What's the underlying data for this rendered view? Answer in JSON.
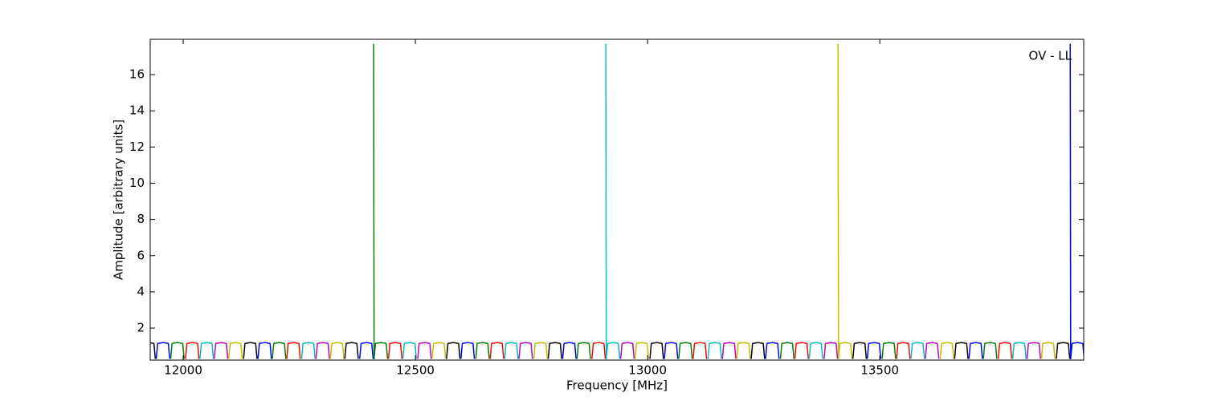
{
  "chart_data": {
    "type": "line",
    "xlabel": "Frequency [MHz]",
    "ylabel": "Amplitude [arbitrary units]",
    "annotation": "OV - LL",
    "xlim": [
      11929,
      13939
    ],
    "ylim": [
      0.23,
      17.95
    ],
    "xticks": [
      12000,
      12500,
      13000,
      13500
    ],
    "yticks": [
      2,
      4,
      6,
      8,
      10,
      12,
      14,
      16
    ],
    "series": [
      {
        "color": "#0000ff",
        "x": [
          11942,
          11945,
          11957,
          11968,
          11971,
          null,
          12161,
          12164,
          12176,
          12187,
          12190,
          null,
          12380,
          12383,
          12395,
          12406,
          12409,
          null,
          12598,
          12601,
          12613,
          12624,
          12627,
          null,
          12817,
          12820,
          12832,
          12843,
          12846,
          null,
          13036,
          13039,
          13051,
          13062,
          13065,
          null,
          13254,
          13257,
          13269,
          13280,
          13283,
          null,
          13473,
          13476,
          13488,
          13499,
          13502,
          null,
          13692,
          13695,
          13707,
          13718,
          13721,
          null,
          13910,
          13911,
          13914,
          13926,
          13937,
          13940
        ],
        "values": [
          0.3,
          1.15,
          1.2,
          1.15,
          0.3,
          null,
          0.3,
          1.15,
          1.2,
          1.15,
          0.3,
          null,
          0.3,
          1.15,
          1.2,
          1.15,
          0.3,
          null,
          0.3,
          1.15,
          1.2,
          1.15,
          0.3,
          null,
          0.3,
          1.15,
          1.2,
          1.15,
          0.3,
          null,
          0.3,
          1.15,
          1.2,
          1.15,
          0.3,
          null,
          0.3,
          1.15,
          1.2,
          1.15,
          0.3,
          null,
          0.3,
          1.15,
          1.2,
          1.15,
          0.3,
          null,
          0.3,
          1.15,
          1.2,
          1.15,
          0.3,
          null,
          17.7,
          0.3,
          1.15,
          1.2,
          1.15,
          0.3
        ]
      },
      {
        "color": "#008000",
        "x": [
          11973,
          11976,
          11988,
          11999,
          12002,
          null,
          12192,
          12195,
          12207,
          12218,
          12221,
          null,
          12410,
          12411,
          12414,
          12426,
          12437,
          12440,
          null,
          12630,
          12633,
          12645,
          12656,
          12659,
          null,
          12848,
          12851,
          12863,
          12874,
          12877,
          null,
          13067,
          13070,
          13082,
          13093,
          13096,
          null,
          13286,
          13289,
          13301,
          13312,
          13315,
          null,
          13505,
          13508,
          13520,
          13531,
          13534,
          null,
          13723,
          13726,
          13738,
          13749,
          13752
        ],
        "values": [
          0.3,
          1.15,
          1.2,
          1.15,
          0.3,
          null,
          0.3,
          1.15,
          1.2,
          1.15,
          0.3,
          null,
          17.7,
          0.3,
          1.15,
          1.2,
          1.15,
          0.3,
          null,
          0.3,
          1.15,
          1.2,
          1.15,
          0.3,
          null,
          0.3,
          1.15,
          1.2,
          1.15,
          0.3,
          null,
          0.3,
          1.15,
          1.2,
          1.15,
          0.3,
          null,
          0.3,
          1.15,
          1.2,
          1.15,
          0.3,
          null,
          0.3,
          1.15,
          1.2,
          1.15,
          0.3,
          null,
          0.3,
          1.15,
          1.2,
          1.15,
          0.3
        ]
      },
      {
        "color": "#ff0000",
        "x": [
          12005,
          12008,
          12020,
          12031,
          12034,
          null,
          12223,
          12226,
          12238,
          12249,
          12252,
          null,
          12442,
          12445,
          12457,
          12468,
          12471,
          null,
          12661,
          12664,
          12676,
          12687,
          12690,
          null,
          12880,
          12883,
          12895,
          12906,
          12909,
          null,
          13098,
          13101,
          13113,
          13124,
          13127,
          null,
          13317,
          13320,
          13332,
          13343,
          13346,
          null,
          13536,
          13539,
          13551,
          13562,
          13565,
          null,
          13755,
          13758,
          13770,
          13781,
          13784
        ],
        "values": [
          0.3,
          1.15,
          1.2,
          1.15,
          0.3,
          null,
          0.3,
          1.15,
          1.2,
          1.15,
          0.3,
          null,
          0.3,
          1.15,
          1.2,
          1.15,
          0.3,
          null,
          0.3,
          1.15,
          1.2,
          1.15,
          0.3,
          null,
          0.3,
          1.15,
          1.2,
          1.15,
          0.3,
          null,
          0.3,
          1.15,
          1.2,
          1.15,
          0.3,
          null,
          0.3,
          1.15,
          1.2,
          1.15,
          0.3,
          null,
          0.3,
          1.15,
          1.2,
          1.15,
          0.3,
          null,
          0.3,
          1.15,
          1.2,
          1.15,
          0.3
        ]
      },
      {
        "color": "#00bfbf",
        "x": [
          12036,
          12039,
          12051,
          12062,
          12065,
          null,
          12255,
          12258,
          12270,
          12281,
          12284,
          null,
          12473,
          12476,
          12488,
          12499,
          12502,
          null,
          12692,
          12695,
          12707,
          12718,
          12721,
          null,
          12910,
          12911,
          12914,
          12926,
          12937,
          12940,
          null,
          13130,
          13133,
          13145,
          13156,
          13159,
          null,
          13348,
          13351,
          13363,
          13374,
          13377,
          null,
          13567,
          13570,
          13582,
          13593,
          13596,
          null,
          13786,
          13789,
          13801,
          13812,
          13815
        ],
        "values": [
          0.3,
          1.15,
          1.2,
          1.15,
          0.3,
          null,
          0.3,
          1.15,
          1.2,
          1.15,
          0.3,
          null,
          0.3,
          1.15,
          1.2,
          1.15,
          0.3,
          null,
          0.3,
          1.15,
          1.2,
          1.15,
          0.3,
          null,
          17.7,
          0.3,
          1.15,
          1.2,
          1.15,
          0.3,
          null,
          0.3,
          1.15,
          1.2,
          1.15,
          0.3,
          null,
          0.3,
          1.15,
          1.2,
          1.15,
          0.3,
          null,
          0.3,
          1.15,
          1.2,
          1.15,
          0.3,
          null,
          0.3,
          1.15,
          1.2,
          1.15,
          0.3
        ]
      },
      {
        "color": "#bf00bf",
        "x": [
          12067,
          12070,
          12082,
          12093,
          12096,
          null,
          12286,
          12289,
          12301,
          12312,
          12315,
          null,
          12505,
          12508,
          12520,
          12531,
          12534,
          null,
          12723,
          12726,
          12738,
          12749,
          12752,
          null,
          12942,
          12945,
          12957,
          12968,
          12971,
          null,
          13161,
          13164,
          13176,
          13187,
          13190,
          null,
          13380,
          13383,
          13395,
          13406,
          13409,
          null,
          13598,
          13601,
          13613,
          13624,
          13627,
          null,
          13817,
          13820,
          13832,
          13843,
          13846
        ],
        "values": [
          0.3,
          1.15,
          1.2,
          1.15,
          0.3,
          null,
          0.3,
          1.15,
          1.2,
          1.15,
          0.3,
          null,
          0.3,
          1.15,
          1.2,
          1.15,
          0.3,
          null,
          0.3,
          1.15,
          1.2,
          1.15,
          0.3,
          null,
          0.3,
          1.15,
          1.2,
          1.15,
          0.3,
          null,
          0.3,
          1.15,
          1.2,
          1.15,
          0.3,
          null,
          0.3,
          1.15,
          1.2,
          1.15,
          0.3,
          null,
          0.3,
          1.15,
          1.2,
          1.15,
          0.3,
          null,
          0.3,
          1.15,
          1.2,
          1.15,
          0.3
        ]
      },
      {
        "color": "#bfbf00",
        "x": [
          12098,
          12101,
          12113,
          12124,
          12127,
          null,
          12317,
          12320,
          12332,
          12343,
          12346,
          null,
          12536,
          12539,
          12551,
          12562,
          12565,
          null,
          12755,
          12758,
          12770,
          12781,
          12784,
          null,
          12973,
          12976,
          12988,
          12999,
          13002,
          null,
          13192,
          13195,
          13207,
          13218,
          13221,
          null,
          13410,
          13411,
          13414,
          13426,
          13437,
          13440,
          null,
          13630,
          13633,
          13645,
          13656,
          13659,
          null,
          13848,
          13851,
          13863,
          13874,
          13877
        ],
        "values": [
          0.3,
          1.15,
          1.2,
          1.15,
          0.3,
          null,
          0.3,
          1.15,
          1.2,
          1.15,
          0.3,
          null,
          0.3,
          1.15,
          1.2,
          1.15,
          0.3,
          null,
          0.3,
          1.15,
          1.2,
          1.15,
          0.3,
          null,
          0.3,
          1.15,
          1.2,
          1.15,
          0.3,
          null,
          0.3,
          1.15,
          1.2,
          1.15,
          0.3,
          null,
          17.7,
          0.3,
          1.15,
          1.2,
          1.15,
          0.3,
          null,
          0.3,
          1.15,
          1.2,
          1.15,
          0.3,
          null,
          0.3,
          1.15,
          1.2,
          1.15,
          0.3
        ]
      },
      {
        "color": "#000000",
        "x": [
          11911,
          11914,
          11926,
          11937,
          11940,
          null,
          12130,
          12133,
          12145,
          12156,
          12159,
          null,
          12348,
          12351,
          12363,
          12374,
          12377,
          null,
          12567,
          12570,
          12582,
          12593,
          12596,
          null,
          12786,
          12789,
          12801,
          12812,
          12815,
          null,
          13005,
          13008,
          13020,
          13031,
          13034,
          null,
          13223,
          13226,
          13238,
          13249,
          13252,
          null,
          13442,
          13445,
          13457,
          13468,
          13471,
          null,
          13661,
          13664,
          13676,
          13687,
          13690,
          null,
          13880,
          13883,
          13895,
          13906,
          13909
        ],
        "values": [
          0.3,
          1.15,
          1.2,
          1.15,
          0.3,
          null,
          0.3,
          1.15,
          1.2,
          1.15,
          0.3,
          null,
          0.3,
          1.15,
          1.2,
          1.15,
          0.3,
          null,
          0.3,
          1.15,
          1.2,
          1.15,
          0.3,
          null,
          0.3,
          1.15,
          1.2,
          1.15,
          0.3,
          null,
          0.3,
          1.15,
          1.2,
          1.15,
          0.3,
          null,
          0.3,
          1.15,
          1.2,
          1.15,
          0.3,
          null,
          0.3,
          1.15,
          1.2,
          1.15,
          0.3,
          null,
          0.3,
          1.15,
          1.2,
          1.15,
          0.3,
          null,
          0.3,
          1.15,
          1.2,
          1.15,
          0.3
        ]
      }
    ]
  }
}
